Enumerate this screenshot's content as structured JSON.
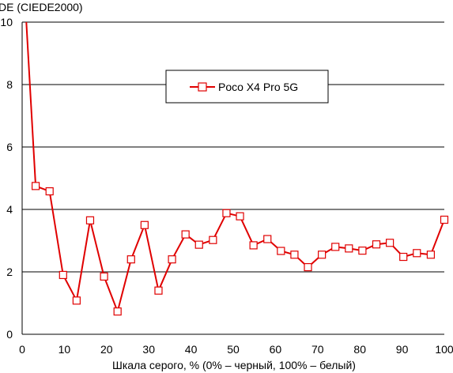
{
  "chart_data": {
    "type": "line",
    "ylabel": "DE (CIEDE2000)",
    "xlabel": "Шкала серого, % (0% – черный, 100% – белый)",
    "xlim": [
      0,
      100
    ],
    "ylim": [
      0,
      10
    ],
    "x_ticks": [
      "0",
      "10",
      "20",
      "30",
      "40",
      "50",
      "60",
      "70",
      "80",
      "90",
      "100"
    ],
    "y_ticks": [
      "0",
      "2",
      "4",
      "6",
      "8",
      "10"
    ],
    "grid": "horizontal",
    "legend_position": "top-center",
    "colors": {
      "series": "#e00000",
      "grid": "#000000",
      "background": "#ffffff"
    },
    "series": [
      {
        "name": "Poco X4 Pro 5G",
        "marker": "square",
        "points": [
          [
            1.0,
            10.0
          ],
          [
            3.2,
            4.75
          ],
          [
            6.5,
            4.58
          ],
          [
            9.7,
            1.9
          ],
          [
            12.9,
            1.08
          ],
          [
            16.1,
            3.65
          ],
          [
            19.4,
            1.85
          ],
          [
            22.6,
            0.73
          ],
          [
            25.8,
            2.4
          ],
          [
            29.0,
            3.5
          ],
          [
            32.3,
            1.4
          ],
          [
            35.5,
            2.4
          ],
          [
            38.7,
            3.2
          ],
          [
            41.9,
            2.87
          ],
          [
            45.2,
            3.02
          ],
          [
            48.4,
            3.88
          ],
          [
            51.6,
            3.78
          ],
          [
            54.8,
            2.85
          ],
          [
            58.1,
            3.05
          ],
          [
            61.3,
            2.67
          ],
          [
            64.5,
            2.55
          ],
          [
            67.7,
            2.15
          ],
          [
            71.0,
            2.55
          ],
          [
            74.2,
            2.8
          ],
          [
            77.4,
            2.75
          ],
          [
            80.6,
            2.68
          ],
          [
            83.9,
            2.88
          ],
          [
            87.1,
            2.93
          ],
          [
            90.3,
            2.48
          ],
          [
            93.5,
            2.6
          ],
          [
            96.8,
            2.55
          ],
          [
            100.0,
            3.67
          ]
        ]
      }
    ]
  }
}
